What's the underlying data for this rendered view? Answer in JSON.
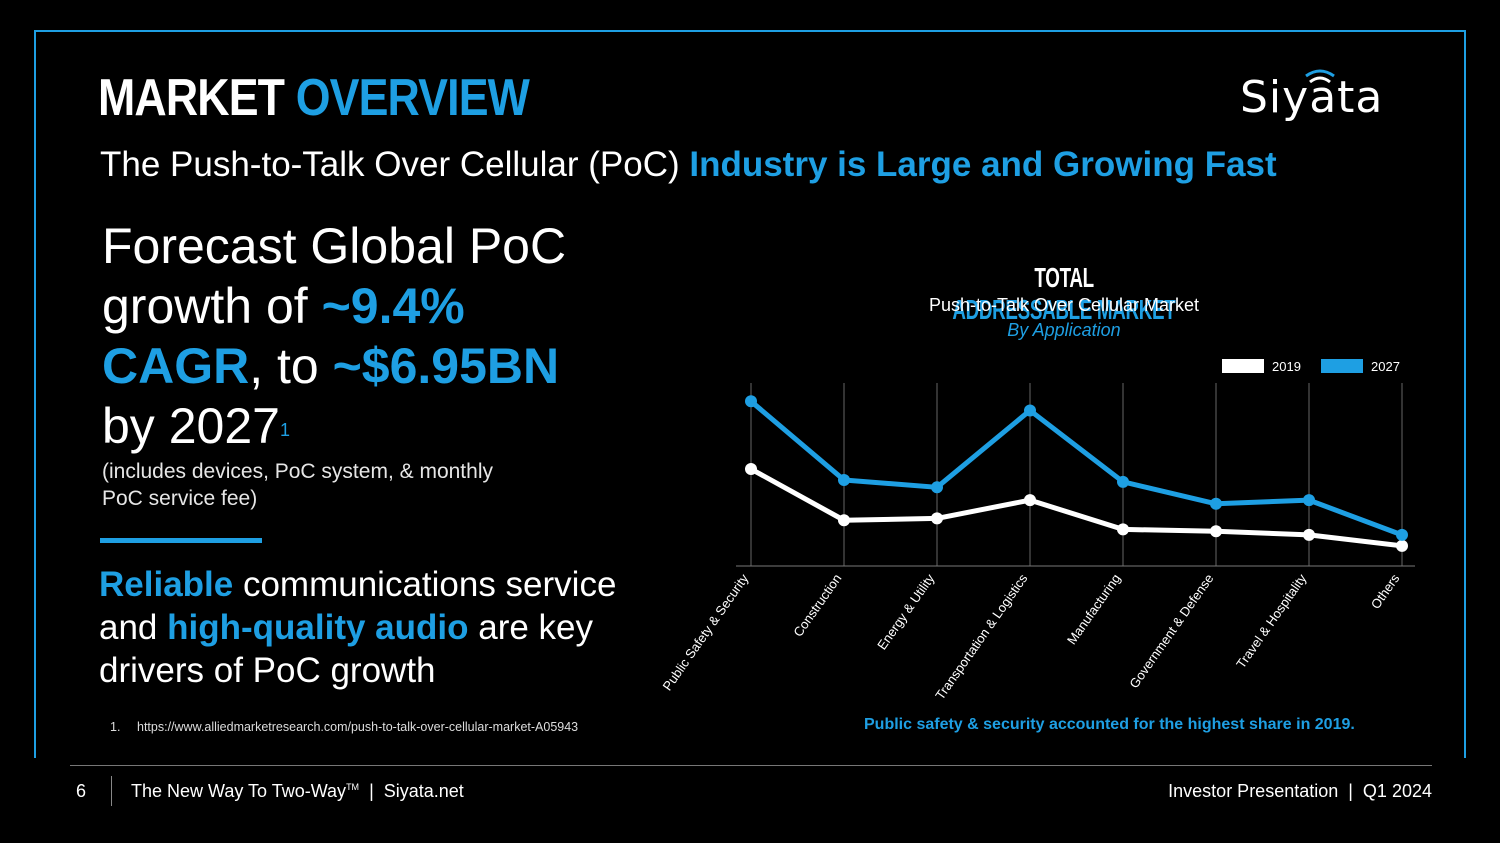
{
  "header": {
    "title_part1": "MARKET",
    "title_part2": "OVERVIEW",
    "logo_text": "Siyata",
    "subtitle_plain": "The Push-to-Talk Over Cellular (PoC) ",
    "subtitle_highlight": "Industry is Large and Growing Fast"
  },
  "forecast": {
    "line1": "Forecast Global PoC growth of ",
    "highlight1": "~9.4% CAGR",
    "middle": ", to ",
    "highlight2": "~$6.95BN",
    "end": " by 2027",
    "footnote_ref": "1",
    "note": "(includes devices, PoC system, & monthly PoC service fee)"
  },
  "drivers": {
    "hl1": "Reliable",
    "text1": " communications service and ",
    "hl2": "high-quality audio",
    "text2": " are key drivers of PoC growth"
  },
  "footnote": {
    "number": "1.",
    "url": "https://www.alliedmarketresearch.com/push-to-talk-over-cellular-market-A05943"
  },
  "chart_header": {
    "title_part1": "TOTAL",
    "title_part2": "ADDRESSABLE MARKET",
    "subtitle": "Push-to-Talk Over Cellular Market",
    "subtitle2": "By Application"
  },
  "chart_data": {
    "type": "line",
    "title": "TOTAL ADDRESSABLE MARKET",
    "subtitle": "Push-to-Talk Over Cellular Market By Application",
    "categories": [
      "Public Safety & Security",
      "Construction",
      "Energy & Utility",
      "Transportation & Logistics",
      "Manufacturing",
      "Government & Defense",
      "Travel & Hospitality",
      "Others"
    ],
    "series": [
      {
        "name": "2019",
        "color": "#ffffff",
        "values": [
          0.53,
          0.25,
          0.26,
          0.36,
          0.2,
          0.19,
          0.17,
          0.11
        ]
      },
      {
        "name": "2027",
        "color": "#1e9fe3",
        "values": [
          0.9,
          0.47,
          0.43,
          0.85,
          0.46,
          0.34,
          0.36,
          0.17
        ]
      }
    ],
    "ylim": [
      0,
      1
    ],
    "grid": "vertical",
    "legend": "top-right",
    "caption": "Public safety & security accounted for the highest share in 2019."
  },
  "footer": {
    "page_number": "6",
    "tagline": "The New Way To Two-Way",
    "trademark": "TM",
    "site": "  |  Siyata.net",
    "right": "Investor Presentation  |  Q1 2024"
  }
}
